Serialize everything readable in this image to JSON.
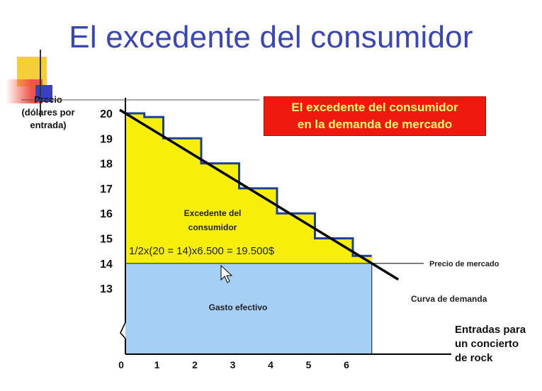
{
  "slide": {
    "title": "El excedente del consumidor"
  },
  "chart_data": {
    "type": "area",
    "title": "El excedente del consumidor en la demanda de mercado",
    "callout_lines": [
      "El excedente del consumidor",
      "en la demanda de mercado"
    ],
    "ylabel_lines": [
      "Precio",
      "(dólares por",
      "entrada)"
    ],
    "xlabel_lines": [
      "Entradas para",
      "un concierto",
      "de rock"
    ],
    "x_ticks": [
      "0",
      "1",
      "2",
      "3",
      "4",
      "5",
      "6"
    ],
    "y_ticks": [
      "20",
      "19",
      "18",
      "17",
      "16",
      "15",
      "14",
      "13"
    ],
    "xlim": [
      0,
      6.5
    ],
    "ylim": [
      13,
      20
    ],
    "demand_curve": {
      "name": "Curva de demanda",
      "x": [
        0,
        6.5
      ],
      "y": [
        20,
        14
      ]
    },
    "market_price": {
      "name": "Precio de mercado",
      "value": 14
    },
    "quantity": 6.5,
    "staircase": {
      "x": [
        0,
        0.5,
        1,
        2,
        3,
        4,
        5,
        6,
        6.5
      ],
      "y": [
        20,
        19.85,
        19,
        18,
        17,
        16,
        15,
        14.3,
        14.3
      ]
    },
    "regions": {
      "surplus_label_lines": [
        "Excedente del",
        "consumidor"
      ],
      "surplus_formula": "1/2x(20 = 14)x6.500   = 19.500$",
      "expenditure_label": "Gasto efectivo"
    },
    "colors": {
      "surplus": "#f7ee0a",
      "expenditure": "#a6cff5",
      "staircase": "#1d3fa0",
      "demand": "#000000",
      "title": "#3a46b8",
      "callout_bg": "#ee1a10",
      "callout_text": "#ffff6a"
    },
    "grid": false
  }
}
